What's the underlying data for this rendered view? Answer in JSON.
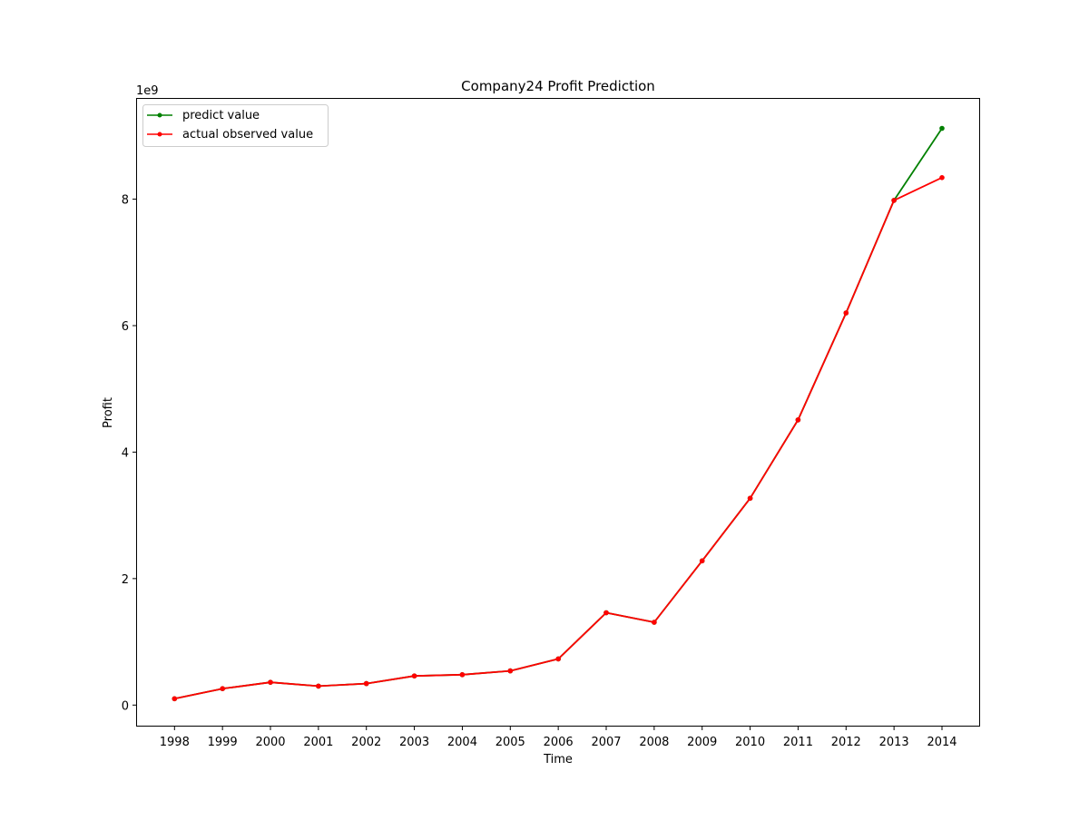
{
  "chart_data": {
    "type": "line",
    "title": "Company24 Profit Prediction",
    "xlabel": "Time",
    "ylabel": "Profit",
    "y_offset_label": "1e9",
    "categories": [
      "1998",
      "1999",
      "2000",
      "2001",
      "2002",
      "2003",
      "2004",
      "2005",
      "2006",
      "2007",
      "2008",
      "2009",
      "2010",
      "2011",
      "2012",
      "2013",
      "2014"
    ],
    "y_ticks": [
      0,
      2,
      4,
      6,
      8
    ],
    "y_tick_labels": [
      "0",
      "2",
      "4",
      "6",
      "8"
    ],
    "ylim": [
      -0.34,
      9.6
    ],
    "grid": false,
    "legend_position": "top-left",
    "series": [
      {
        "name": "predict value",
        "color": "#008000",
        "values": [
          0.1,
          0.26,
          0.36,
          0.3,
          0.34,
          0.46,
          0.48,
          0.54,
          0.73,
          1.46,
          1.31,
          2.28,
          3.27,
          4.51,
          6.2,
          7.98,
          9.12
        ]
      },
      {
        "name": "actual observed value",
        "color": "#ff0000",
        "values": [
          0.1,
          0.26,
          0.36,
          0.3,
          0.34,
          0.46,
          0.48,
          0.54,
          0.73,
          1.46,
          1.31,
          2.28,
          3.27,
          4.51,
          6.2,
          7.98,
          8.34
        ]
      }
    ]
  }
}
